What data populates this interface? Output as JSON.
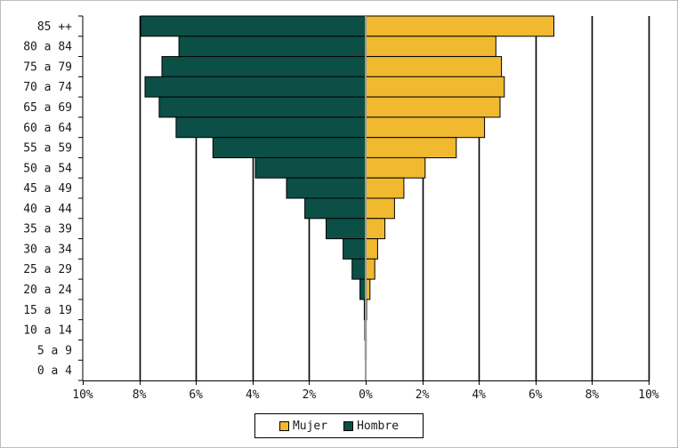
{
  "chart_data": {
    "type": "bar",
    "orientation": "horizontal-population-pyramid",
    "categories": [
      "85 ++",
      "80 a 84",
      "75 a 79",
      "70 a 74",
      "65 a 69",
      "60 a 64",
      "55 a 59",
      "50 a 54",
      "45 a 49",
      "40 a 44",
      "35 a 39",
      "30 a 34",
      "25 a 29",
      "20 a 24",
      "15 a 19",
      "10 a 14",
      "5 a 9",
      "0 a 4"
    ],
    "series": [
      {
        "name": "Mujer",
        "color": "#f0b92f",
        "side": "right",
        "values": [
          6.65,
          4.6,
          4.8,
          4.9,
          4.75,
          4.2,
          3.2,
          2.1,
          1.35,
          1.02,
          0.68,
          0.42,
          0.32,
          0.15,
          0.03,
          0.02,
          0.01,
          0.0
        ]
      },
      {
        "name": "Hombre",
        "color": "#0b4f47",
        "side": "left",
        "values": [
          7.95,
          6.6,
          7.2,
          7.8,
          7.3,
          6.7,
          5.4,
          3.9,
          2.8,
          2.15,
          1.4,
          0.8,
          0.48,
          0.2,
          0.05,
          0.03,
          0.02,
          0.01
        ]
      }
    ],
    "xlim": [
      -10,
      10
    ],
    "xticks": [
      "10%",
      "8%",
      "6%",
      "4%",
      "2%",
      "0%",
      "2%",
      "4%",
      "6%",
      "8%",
      "10%"
    ],
    "grid": "vertical",
    "legend": "bottom-center"
  },
  "legend": {
    "mujer_label": "Mujer",
    "hombre_label": "Hombre"
  }
}
